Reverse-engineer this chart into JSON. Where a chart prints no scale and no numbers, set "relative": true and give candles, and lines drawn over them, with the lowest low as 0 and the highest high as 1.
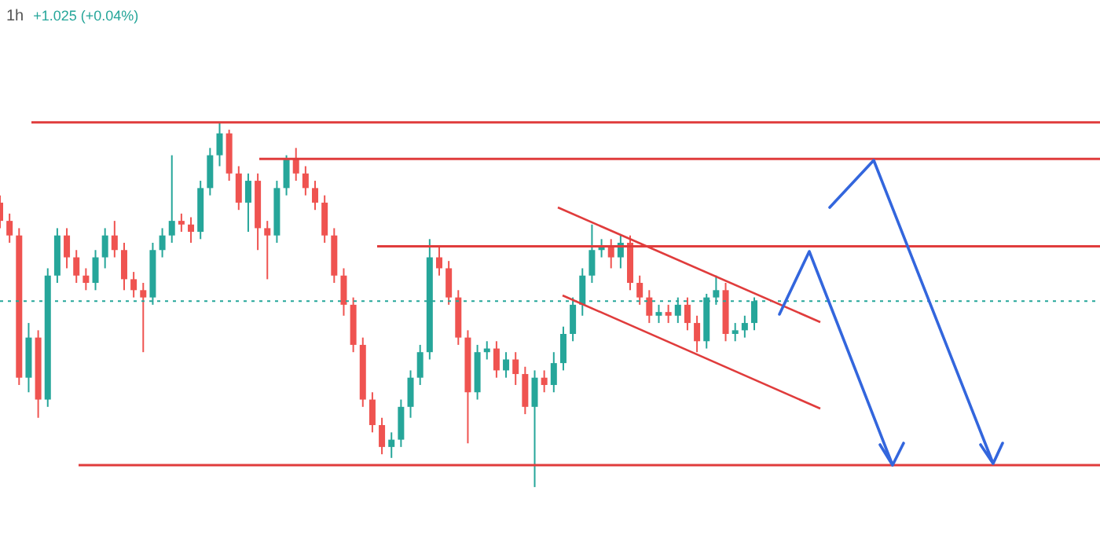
{
  "chart_data": {
    "type": "candlestick",
    "title": "1h",
    "subtitle": "+1.025 (+0.04%)",
    "relative": true,
    "categories": [
      null,
      null,
      null,
      null,
      null,
      null,
      null,
      null,
      null,
      null,
      null,
      null,
      null,
      null,
      null,
      null,
      null,
      null,
      null,
      null,
      null,
      null,
      null,
      null,
      null,
      null,
      null,
      null,
      null,
      null,
      null,
      null,
      null,
      null,
      null,
      null,
      null,
      null,
      null,
      null,
      null,
      null,
      null,
      null,
      null,
      null,
      null,
      null,
      null,
      null,
      null,
      null,
      null,
      null,
      null,
      null,
      null,
      null,
      null,
      null,
      null,
      null,
      null,
      null,
      null,
      null,
      null,
      null,
      null,
      null,
      null,
      null,
      null,
      null,
      null,
      null,
      null,
      null,
      null,
      null
    ],
    "ohlc": [
      [
        0.78,
        0.8,
        0.71,
        0.73
      ],
      [
        0.73,
        0.75,
        0.67,
        0.69
      ],
      [
        0.69,
        0.71,
        0.28,
        0.3
      ],
      [
        0.3,
        0.45,
        0.26,
        0.41
      ],
      [
        0.41,
        0.43,
        0.19,
        0.24
      ],
      [
        0.24,
        0.6,
        0.22,
        0.58
      ],
      [
        0.58,
        0.71,
        0.56,
        0.69
      ],
      [
        0.69,
        0.71,
        0.6,
        0.63
      ],
      [
        0.63,
        0.65,
        0.56,
        0.58
      ],
      [
        0.58,
        0.6,
        0.54,
        0.56
      ],
      [
        0.56,
        0.65,
        0.54,
        0.63
      ],
      [
        0.63,
        0.71,
        0.6,
        0.69
      ],
      [
        0.69,
        0.73,
        0.63,
        0.65
      ],
      [
        0.65,
        0.67,
        0.54,
        0.57
      ],
      [
        0.57,
        0.59,
        0.52,
        0.54
      ],
      [
        0.54,
        0.56,
        0.37,
        0.52
      ],
      [
        0.52,
        0.67,
        0.5,
        0.65
      ],
      [
        0.65,
        0.71,
        0.63,
        0.69
      ],
      [
        0.69,
        0.91,
        0.67,
        0.73
      ],
      [
        0.73,
        0.75,
        0.7,
        0.72
      ],
      [
        0.72,
        0.74,
        0.67,
        0.7
      ],
      [
        0.7,
        0.84,
        0.68,
        0.82
      ],
      [
        0.82,
        0.93,
        0.8,
        0.91
      ],
      [
        0.91,
        1.0,
        0.88,
        0.97
      ],
      [
        0.97,
        0.98,
        0.84,
        0.86
      ],
      [
        0.86,
        0.88,
        0.76,
        0.78
      ],
      [
        0.78,
        0.86,
        0.7,
        0.84
      ],
      [
        0.84,
        0.86,
        0.65,
        0.71
      ],
      [
        0.71,
        0.73,
        0.57,
        0.69
      ],
      [
        0.69,
        0.84,
        0.67,
        0.82
      ],
      [
        0.82,
        0.91,
        0.8,
        0.9
      ],
      [
        0.9,
        0.93,
        0.84,
        0.86
      ],
      [
        0.86,
        0.88,
        0.8,
        0.82
      ],
      [
        0.82,
        0.84,
        0.76,
        0.78
      ],
      [
        0.78,
        0.8,
        0.67,
        0.69
      ],
      [
        0.69,
        0.71,
        0.56,
        0.58
      ],
      [
        0.58,
        0.6,
        0.47,
        0.5
      ],
      [
        0.5,
        0.52,
        0.37,
        0.39
      ],
      [
        0.39,
        0.41,
        0.22,
        0.24
      ],
      [
        0.24,
        0.26,
        0.15,
        0.17
      ],
      [
        0.17,
        0.19,
        0.09,
        0.11
      ],
      [
        0.11,
        0.15,
        0.08,
        0.13
      ],
      [
        0.13,
        0.24,
        0.11,
        0.22
      ],
      [
        0.22,
        0.32,
        0.19,
        0.3
      ],
      [
        0.3,
        0.39,
        0.28,
        0.37
      ],
      [
        0.37,
        0.68,
        0.35,
        0.63
      ],
      [
        0.63,
        0.66,
        0.58,
        0.6
      ],
      [
        0.6,
        0.62,
        0.5,
        0.52
      ],
      [
        0.52,
        0.54,
        0.39,
        0.41
      ],
      [
        0.41,
        0.43,
        0.12,
        0.26
      ],
      [
        0.26,
        0.39,
        0.24,
        0.37
      ],
      [
        0.37,
        0.4,
        0.35,
        0.38
      ],
      [
        0.38,
        0.4,
        0.3,
        0.32
      ],
      [
        0.32,
        0.37,
        0.3,
        0.35
      ],
      [
        0.35,
        0.37,
        0.28,
        0.31
      ],
      [
        0.31,
        0.33,
        0.2,
        0.22
      ],
      [
        0.22,
        0.32,
        0.0,
        0.3
      ],
      [
        0.3,
        0.32,
        0.26,
        0.28
      ],
      [
        0.28,
        0.37,
        0.26,
        0.34
      ],
      [
        0.34,
        0.44,
        0.32,
        0.42
      ],
      [
        0.42,
        0.52,
        0.4,
        0.5
      ],
      [
        0.5,
        0.6,
        0.47,
        0.58
      ],
      [
        0.58,
        0.72,
        0.56,
        0.65
      ],
      [
        0.65,
        0.68,
        0.63,
        0.66
      ],
      [
        0.66,
        0.68,
        0.6,
        0.63
      ],
      [
        0.63,
        0.69,
        0.6,
        0.67
      ],
      [
        0.67,
        0.69,
        0.54,
        0.56
      ],
      [
        0.56,
        0.58,
        0.5,
        0.52
      ],
      [
        0.52,
        0.54,
        0.45,
        0.47
      ],
      [
        0.47,
        0.5,
        0.45,
        0.48
      ],
      [
        0.48,
        0.5,
        0.45,
        0.47
      ],
      [
        0.47,
        0.52,
        0.45,
        0.5
      ],
      [
        0.5,
        0.52,
        0.43,
        0.45
      ],
      [
        0.45,
        0.47,
        0.37,
        0.4
      ],
      [
        0.4,
        0.53,
        0.38,
        0.52
      ],
      [
        0.52,
        0.58,
        0.5,
        0.54
      ],
      [
        0.54,
        0.56,
        0.4,
        0.42
      ],
      [
        0.42,
        0.45,
        0.4,
        0.43
      ],
      [
        0.43,
        0.47,
        0.41,
        0.45
      ],
      [
        0.45,
        0.52,
        0.43,
        0.51
      ]
    ],
    "ref_lines": [
      {
        "axis": "y",
        "value": 1.0,
        "color": "#e03c3c",
        "line_style": "solid"
      },
      {
        "axis": "y",
        "value": 0.9,
        "color": "#e03c3c",
        "line_style": "solid"
      },
      {
        "axis": "y",
        "value": 0.66,
        "color": "#e03c3c",
        "line_style": "solid"
      },
      {
        "axis": "y",
        "value": 0.06,
        "color": "#e03c3c",
        "line_style": "solid"
      },
      {
        "axis": "y",
        "value": 0.51,
        "color": "#26a69a",
        "line_style": "dotted"
      }
    ]
  }
}
